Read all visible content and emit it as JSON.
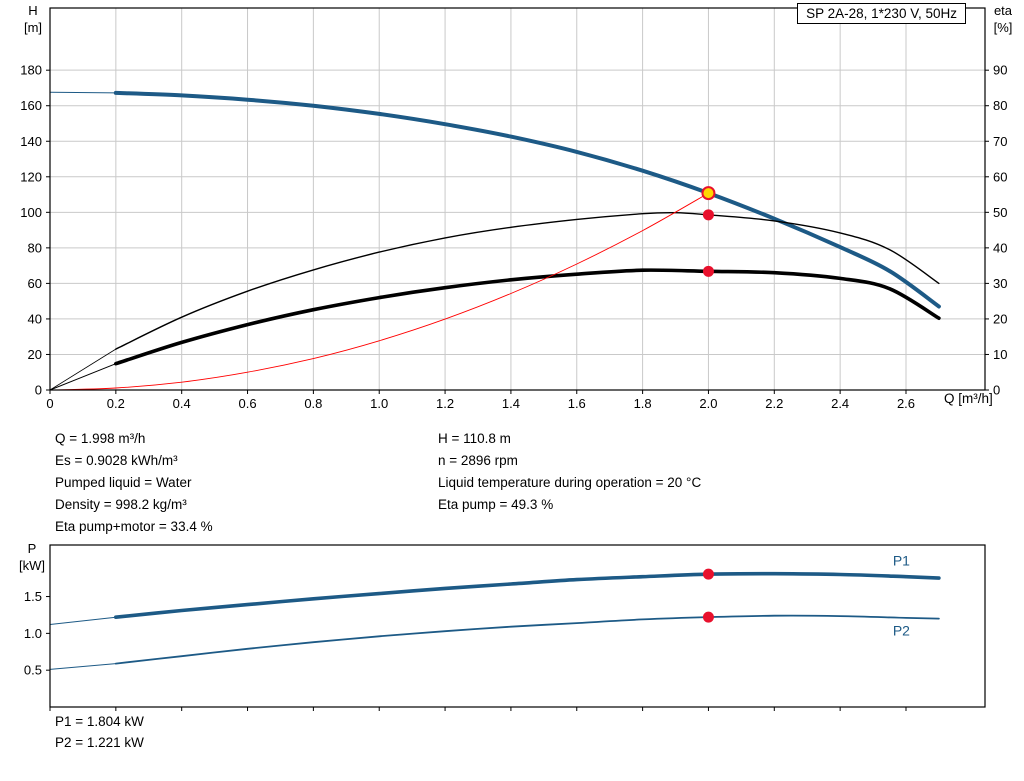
{
  "header": {
    "title_box": "SP 2A-28, 1*230 V, 50Hz"
  },
  "info_left": [
    "Q = 1.998 m³/h",
    "Es = 0.9028 kWh/m³",
    "Pumped liquid = Water",
    "Density = 998.2 kg/m³",
    "Eta pump+motor = 33.4 %"
  ],
  "info_right": [
    "H = 110.8 m",
    "n = 2896 rpm",
    "Liquid temperature during operation = 20 °C",
    "Eta pump = 49.3 %"
  ],
  "footer_lines": [
    "P1 = 1.804 kW",
    "P2 = 1.221 kW"
  ],
  "colors": {
    "curve_blue": "#1d5a86",
    "curve_red": "#ff0000",
    "dot_red": "#e8112d",
    "dot_yellow": "#ffd800",
    "grid": "#c9c9c9"
  },
  "chart_data": [
    {
      "type": "line",
      "name": "qh-eta-chart",
      "title": "SP 2A-28, 1*230 V, 50Hz",
      "grid": true,
      "x_axis": {
        "label": "Q [m³/h]",
        "lim": [
          0,
          2.84
        ],
        "ticks": [
          0,
          0.2,
          0.4,
          0.6,
          0.8,
          1.0,
          1.2,
          1.4,
          1.6,
          1.8,
          2.0,
          2.2,
          2.4,
          2.6
        ],
        "tick_labels": [
          "0",
          "0.2",
          "0.4",
          "0.6",
          "0.8",
          "1.0",
          "1.2",
          "1.4",
          "1.6",
          "1.8",
          "2.0",
          "2.2",
          "2.4",
          "2.6"
        ]
      },
      "y_left": {
        "label_lines": [
          "H",
          "[m]"
        ],
        "lim": [
          0,
          215
        ],
        "ticks": [
          0,
          20,
          40,
          60,
          80,
          100,
          120,
          140,
          160,
          180
        ],
        "tick_labels": [
          "0",
          "20",
          "40",
          "60",
          "80",
          "100",
          "120",
          "140",
          "160",
          "180"
        ]
      },
      "y_right": {
        "label_lines": [
          "eta",
          "[%]"
        ],
        "lim": [
          0,
          107.5
        ],
        "ticks": [
          0,
          10,
          20,
          30,
          40,
          50,
          60,
          70,
          80,
          90
        ],
        "tick_labels": [
          "0",
          "10",
          "20",
          "30",
          "40",
          "50",
          "60",
          "70",
          "80",
          "90"
        ]
      },
      "series": [
        {
          "name": "head-curve",
          "legend": "H",
          "axis": "left",
          "color": "#1d5a86",
          "width": 4,
          "thin_width": 1,
          "thin_until": 0.2,
          "points": [
            [
              0,
              167.6
            ],
            [
              0.2,
              167.2
            ],
            [
              0.4,
              165.8
            ],
            [
              0.6,
              163.4
            ],
            [
              0.8,
              160.0
            ],
            [
              1.0,
              155.4
            ],
            [
              1.2,
              149.6
            ],
            [
              1.4,
              142.6
            ],
            [
              1.6,
              134.0
            ],
            [
              1.8,
              123.4
            ],
            [
              2.0,
              110.8
            ],
            [
              2.2,
              96.4
            ],
            [
              2.4,
              80.4
            ],
            [
              2.55,
              67.0
            ],
            [
              2.7,
              47.0
            ]
          ]
        },
        {
          "name": "eta-pump-curve",
          "legend": "Eta pump",
          "axis": "right",
          "color": "#000000",
          "width": 1.4,
          "thin_width": 0.8,
          "thin_until": 0.2,
          "points": [
            [
              0,
              0
            ],
            [
              0.2,
              11.5
            ],
            [
              0.4,
              20.5
            ],
            [
              0.6,
              27.8
            ],
            [
              0.8,
              33.8
            ],
            [
              1.0,
              38.8
            ],
            [
              1.2,
              42.8
            ],
            [
              1.4,
              45.8
            ],
            [
              1.6,
              48.0
            ],
            [
              1.8,
              49.6
            ],
            [
              1.9,
              49.9
            ],
            [
              2.0,
              49.3
            ],
            [
              2.2,
              47.6
            ],
            [
              2.4,
              44.2
            ],
            [
              2.55,
              39.5
            ],
            [
              2.7,
              30.0
            ]
          ]
        },
        {
          "name": "eta-pump-motor-curve",
          "legend": "Eta pump+motor",
          "axis": "right",
          "color": "#000000",
          "width": 3.6,
          "thin_width": 1,
          "thin_until": 0.2,
          "points": [
            [
              0,
              0
            ],
            [
              0.2,
              7.4
            ],
            [
              0.4,
              13.4
            ],
            [
              0.6,
              18.4
            ],
            [
              0.8,
              22.6
            ],
            [
              1.0,
              26.0
            ],
            [
              1.2,
              28.8
            ],
            [
              1.4,
              31.0
            ],
            [
              1.6,
              32.6
            ],
            [
              1.8,
              33.7
            ],
            [
              2.0,
              33.4
            ],
            [
              2.2,
              33.0
            ],
            [
              2.4,
              31.4
            ],
            [
              2.55,
              28.5
            ],
            [
              2.7,
              20.2
            ]
          ]
        },
        {
          "name": "system-curve",
          "legend": "",
          "axis": "left",
          "color": "#ff0000",
          "width": 0.9,
          "thin_width": 0.9,
          "thin_until": 0,
          "points": [
            [
              0,
              0
            ],
            [
              0.2,
              1.1
            ],
            [
              0.4,
              4.4
            ],
            [
              0.6,
              10.0
            ],
            [
              0.8,
              17.7
            ],
            [
              1.0,
              27.7
            ],
            [
              1.2,
              39.9
            ],
            [
              1.4,
              54.3
            ],
            [
              1.6,
              70.9
            ],
            [
              1.8,
              89.7
            ],
            [
              2.0,
              110.8
            ]
          ]
        }
      ],
      "markers": [
        {
          "name": "duty-point-head",
          "x": 2.0,
          "y": 110.8,
          "axis": "left",
          "fill": "#ffd800",
          "stroke": "#e8112d",
          "stroke_width": 2,
          "r": 6
        },
        {
          "name": "duty-point-eta-pump",
          "x": 2.0,
          "y": 49.3,
          "axis": "right",
          "fill": "#e8112d",
          "stroke": "none",
          "stroke_width": 0,
          "r": 5.5
        },
        {
          "name": "duty-point-eta-pump-motor",
          "x": 2.0,
          "y": 33.4,
          "axis": "right",
          "fill": "#e8112d",
          "stroke": "none",
          "stroke_width": 0,
          "r": 5.5
        }
      ]
    },
    {
      "type": "line",
      "name": "power-chart",
      "grid": false,
      "x_axis": {
        "label": "",
        "lim": [
          0,
          2.84
        ],
        "ticks": [
          0,
          0.2,
          0.4,
          0.6,
          0.8,
          1.0,
          1.2,
          1.4,
          1.6,
          1.8,
          2.0,
          2.2,
          2.4,
          2.6
        ],
        "tick_labels": []
      },
      "y_left": {
        "label_lines": [
          "P",
          "[kW]"
        ],
        "lim": [
          0,
          2.2
        ],
        "ticks": [
          0.5,
          1.0,
          1.5
        ],
        "tick_labels": [
          "0.5",
          "1.0",
          "1.5"
        ]
      },
      "y_right": null,
      "series": [
        {
          "name": "p1-curve",
          "legend": "P1",
          "axis": "left",
          "color": "#1d5a86",
          "width": 3.6,
          "thin_width": 1,
          "thin_until": 0.2,
          "points": [
            [
              0,
              1.12
            ],
            [
              0.2,
              1.22
            ],
            [
              0.4,
              1.31
            ],
            [
              0.6,
              1.39
            ],
            [
              0.8,
              1.47
            ],
            [
              1.0,
              1.54
            ],
            [
              1.2,
              1.61
            ],
            [
              1.4,
              1.67
            ],
            [
              1.6,
              1.73
            ],
            [
              1.8,
              1.77
            ],
            [
              2.0,
              1.804
            ],
            [
              2.2,
              1.81
            ],
            [
              2.4,
              1.8
            ],
            [
              2.6,
              1.77
            ],
            [
              2.7,
              1.75
            ]
          ]
        },
        {
          "name": "p2-curve",
          "legend": "P2",
          "axis": "left",
          "color": "#1d5a86",
          "width": 1.8,
          "thin_width": 1,
          "thin_until": 0.2,
          "points": [
            [
              0,
              0.51
            ],
            [
              0.2,
              0.59
            ],
            [
              0.4,
              0.69
            ],
            [
              0.6,
              0.79
            ],
            [
              0.8,
              0.88
            ],
            [
              1.0,
              0.96
            ],
            [
              1.2,
              1.03
            ],
            [
              1.4,
              1.09
            ],
            [
              1.6,
              1.14
            ],
            [
              1.8,
              1.19
            ],
            [
              2.0,
              1.221
            ],
            [
              2.2,
              1.24
            ],
            [
              2.4,
              1.235
            ],
            [
              2.6,
              1.21
            ],
            [
              2.7,
              1.2
            ]
          ]
        }
      ],
      "markers": [
        {
          "name": "duty-point-p1",
          "x": 2.0,
          "y": 1.804,
          "axis": "left",
          "fill": "#e8112d",
          "stroke": "none",
          "stroke_width": 0,
          "r": 5.5
        },
        {
          "name": "duty-point-p2",
          "x": 2.0,
          "y": 1.221,
          "axis": "left",
          "fill": "#e8112d",
          "stroke": "none",
          "stroke_width": 0,
          "r": 5.5
        }
      ],
      "curve_labels": [
        {
          "text": "P1",
          "x": 2.56,
          "y": 1.92,
          "color": "#1d5a86"
        },
        {
          "text": "P2",
          "x": 2.56,
          "y": 0.97,
          "color": "#1d5a86"
        }
      ]
    }
  ]
}
